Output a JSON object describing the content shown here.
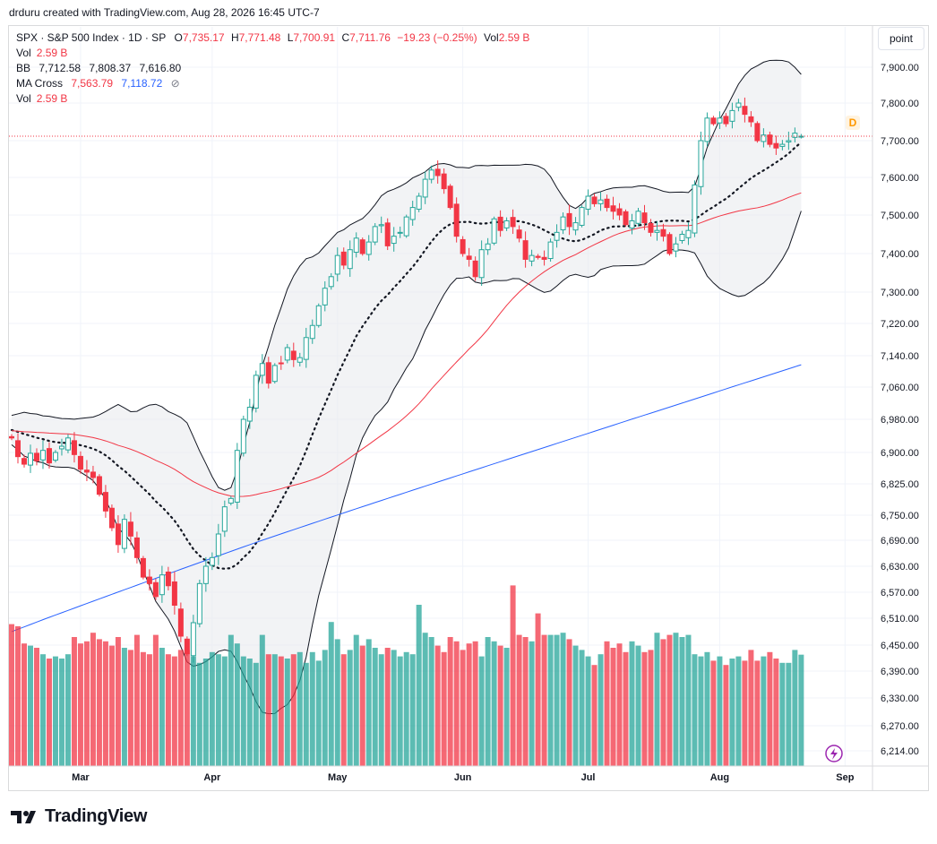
{
  "attribution": "drduru created with TradingView.com, Aug 28, 2026 16:45 UTC-7",
  "legend": {
    "symbol": "SPX · S&P 500 Index · 1D · SP",
    "o_label": "O",
    "o_value": "7,735.17",
    "h_label": "H",
    "h_value": "7,771.48",
    "l_label": "L",
    "l_value": "7,700.91",
    "c_label": "C",
    "c_value": "7,711.76",
    "change": "−19.23 (−0.25%)",
    "vol_label": "Vol",
    "vol_value": "2.59 B",
    "vol_row_label": "Vol",
    "vol_row_value": "2.59 B",
    "bb_label": "BB",
    "bb_basis": "7,712.58",
    "bb_upper": "7,808.37",
    "bb_lower": "7,616.80",
    "ma_label": "MA Cross",
    "ma_short": "7,563.79",
    "ma_long": "7,118.72",
    "vol2_label": "Vol",
    "vol2_value": "2.59 B"
  },
  "scale_button": "point",
  "badge": "D",
  "footer": {
    "brand": "TradingView"
  },
  "colors": {
    "up": "#26a69a",
    "down": "#f23645",
    "ma50": "#f23645",
    "ma200": "#2962ff",
    "band": "#e9ebee"
  },
  "chart_data": {
    "type": "candlestick",
    "title": "SPX · S&P 500 Index · 1D · SP",
    "y_ticks": [
      7900,
      7800,
      7700,
      7600,
      7500,
      7400,
      7300,
      7220,
      7140,
      7060,
      6980,
      6900,
      6825,
      6750,
      6690,
      6630,
      6570,
      6510,
      6450,
      6390,
      6330,
      6270,
      6214
    ],
    "y_tick_labels": [
      "7,900.00",
      "7,800.00",
      "7,700.00",
      "7,600.00",
      "7,500.00",
      "7,400.00",
      "7,300.00",
      "7,220.00",
      "7,140.00",
      "7,060.00",
      "6,980.00",
      "6,900.00",
      "6,825.00",
      "6,750.00",
      "6,690.00",
      "6,630.00",
      "6,570.00",
      "6,510.00",
      "6,450.00",
      "6,390.00",
      "6,330.00",
      "6,270.00",
      "6,214.00"
    ],
    "x_labels": [
      {
        "label": "Mar",
        "index": 11
      },
      {
        "label": "Apr",
        "index": 32
      },
      {
        "label": "May",
        "index": 52
      },
      {
        "label": "Jun",
        "index": 72
      },
      {
        "label": "Jul",
        "index": 92
      },
      {
        "label": "Aug",
        "index": 113
      },
      {
        "label": "Sep",
        "index": 133
      }
    ],
    "last_price": 7711.76,
    "closes": [
      6935,
      6890,
      6872,
      6898,
      6880,
      6905,
      6875,
      6900,
      6915,
      6935,
      6895,
      6860,
      6853,
      6840,
      6800,
      6760,
      6720,
      6680,
      6740,
      6700,
      6650,
      6605,
      6590,
      6560,
      6610,
      6585,
      6540,
      6470,
      6430,
      6500,
      6590,
      6630,
      6650,
      6705,
      6770,
      6790,
      6905,
      6980,
      7010,
      7090,
      7120,
      7070,
      7115,
      7120,
      7160,
      7130,
      7135,
      7185,
      7215,
      7265,
      7310,
      7340,
      7395,
      7370,
      7410,
      7440,
      7400,
      7430,
      7470,
      7475,
      7420,
      7445,
      7455,
      7495,
      7520,
      7550,
      7595,
      7620,
      7605,
      7570,
      7520,
      7445,
      7400,
      7385,
      7340,
      7410,
      7425,
      7490,
      7460,
      7485,
      7470,
      7440,
      7385,
      7395,
      7390,
      7385,
      7430,
      7455,
      7495,
      7470,
      7480,
      7520,
      7550,
      7530,
      7540,
      7520,
      7510,
      7500,
      7475,
      7485,
      7510,
      7480,
      7455,
      7460,
      7445,
      7400,
      7425,
      7450,
      7460,
      7580,
      7700,
      7760,
      7745,
      7760,
      7745,
      7780,
      7800,
      7770,
      7750,
      7700,
      7715,
      7690,
      7680,
      7690,
      7700,
      7720,
      7711.76
    ],
    "volumes": [
      3.3,
      3.25,
      2.85,
      2.8,
      2.75,
      2.6,
      2.5,
      2.55,
      2.5,
      2.6,
      3.0,
      2.85,
      2.9,
      3.1,
      2.95,
      2.9,
      2.8,
      3.0,
      2.75,
      2.7,
      3.05,
      2.65,
      2.6,
      3.05,
      2.75,
      2.6,
      2.55,
      2.7,
      2.7,
      2.55,
      2.4,
      2.5,
      2.65,
      2.6,
      2.55,
      3.05,
      2.85,
      2.55,
      2.5,
      2.4,
      3.05,
      2.6,
      2.6,
      2.55,
      2.5,
      2.6,
      2.65,
      2.4,
      2.65,
      2.45,
      2.7,
      3.35,
      2.95,
      2.6,
      2.7,
      3.05,
      2.8,
      2.95,
      2.75,
      2.6,
      2.75,
      2.7,
      2.55,
      2.65,
      2.6,
      3.75,
      3.1,
      3.0,
      2.8,
      2.65,
      3.0,
      2.9,
      2.7,
      2.85,
      2.9,
      2.55,
      3.0,
      2.9,
      2.8,
      2.75,
      4.2,
      3.05,
      3.0,
      2.9,
      3.55,
      3.05,
      3.05,
      3.05,
      3.1,
      2.95,
      2.8,
      2.7,
      2.55,
      2.35,
      2.6,
      2.9,
      2.75,
      2.85,
      2.65,
      2.9,
      2.8,
      2.65,
      2.7,
      3.1,
      2.95,
      3.05,
      3.1,
      3.0,
      3.05,
      2.6,
      2.55,
      2.65,
      2.45,
      2.55,
      2.35,
      2.5,
      2.55,
      2.45,
      2.7,
      2.45,
      2.55,
      2.65,
      2.5,
      2.4,
      2.4,
      2.7,
      2.59
    ]
  }
}
